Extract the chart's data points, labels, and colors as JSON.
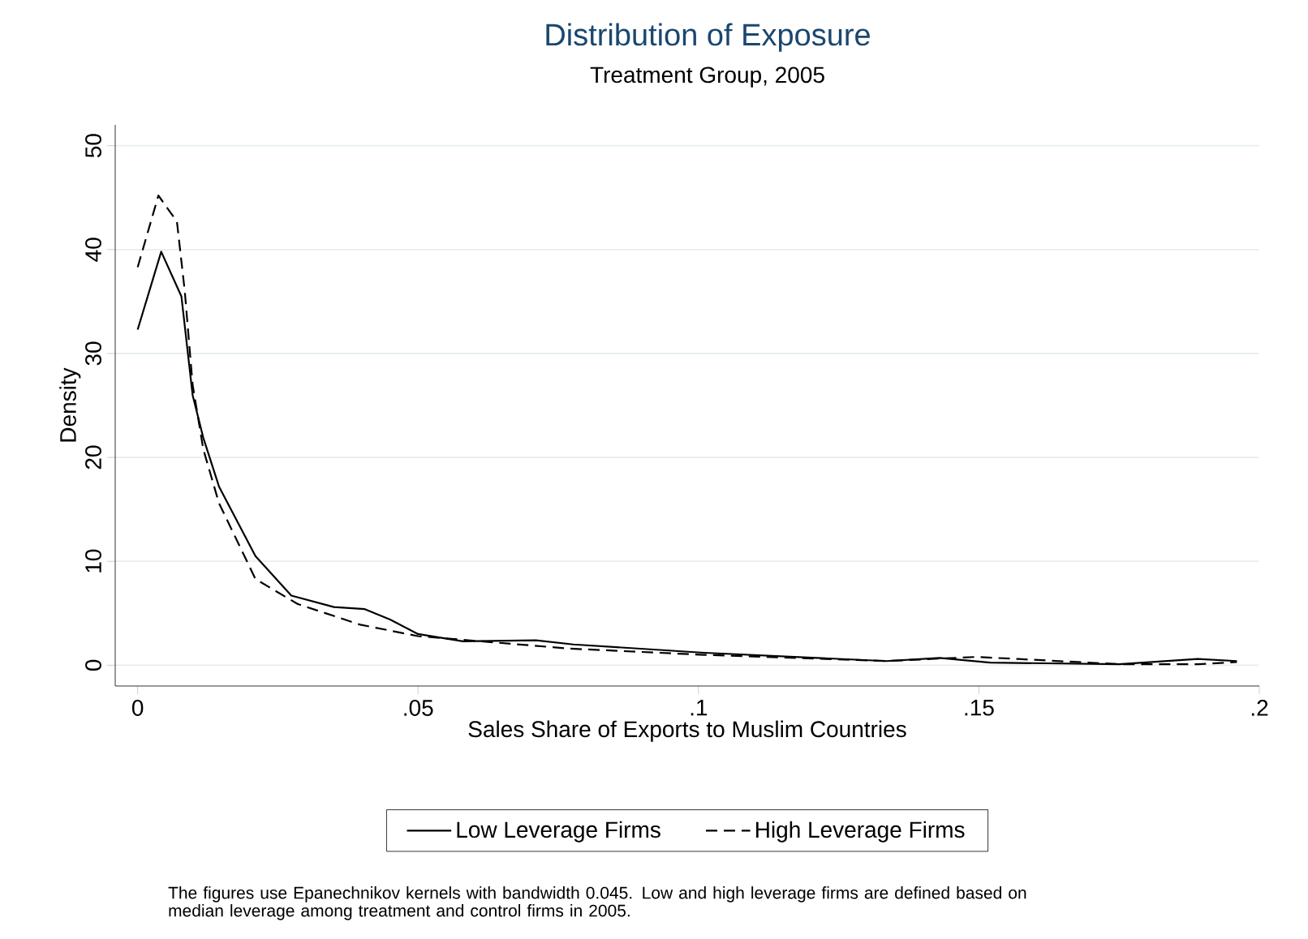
{
  "chart_data": {
    "type": "line",
    "title": "Distribution of Exposure",
    "subtitle": "Treatment Group, 2005",
    "xlabel": "Sales Share of Exports to Muslim Countries",
    "ylabel": "Density",
    "series": [
      {
        "name": "Low Leverage Firms",
        "color": "#000000",
        "line_style": "solid",
        "x": [
          0,
          0.0042,
          0.0078,
          0.0098,
          0.0117,
          0.0145,
          0.021,
          0.0274,
          0.035,
          0.0405,
          0.045,
          0.05,
          0.058,
          0.071,
          0.0777,
          0.101,
          0.1335,
          0.143,
          0.152,
          0.175,
          0.189,
          0.196
        ],
        "values": [
          32.3,
          39.8,
          35.5,
          26,
          21.9,
          17.2,
          10.5,
          6.7,
          5.6,
          5.4,
          4.4,
          3.0,
          2.3,
          2.4,
          2.0,
          1.2,
          0.4,
          0.7,
          0.25,
          0.1,
          0.6,
          0.4
        ]
      },
      {
        "name": "High Leverage Firms",
        "color": "#000000",
        "line_style": "dashed",
        "x": [
          0,
          0.0037,
          0.007,
          0.0084,
          0.0098,
          0.0117,
          0.0145,
          0.021,
          0.0285,
          0.0397,
          0.05,
          0.077,
          0.101,
          0.1335,
          0.1495,
          0.157,
          0.175,
          0.189,
          0.196
        ],
        "values": [
          38.3,
          45.2,
          42.7,
          36,
          27,
          20.8,
          15.6,
          8.3,
          5.9,
          3.9,
          2.8,
          1.6,
          1.0,
          0.4,
          0.8,
          0.6,
          0.1,
          0.1,
          0.3
        ]
      }
    ],
    "xlim": [
      -0.004,
      0.2
    ],
    "ylim": [
      -2,
      52
    ],
    "xticks": [
      {
        "value": 0,
        "label": "0"
      },
      {
        "value": 0.05,
        "label": ".05"
      },
      {
        "value": 0.1,
        "label": ".1"
      },
      {
        "value": 0.15,
        "label": ".15"
      },
      {
        "value": 0.2,
        "label": ".2"
      }
    ],
    "yticks": [
      0,
      10,
      20,
      30,
      40,
      50
    ],
    "grid": "y",
    "legend": "bottom",
    "annotations": [
      "The figures use Epanechnikov kernels with bandwidth 0.045. Low and high leverage firms are defined based on median leverage among treatment and control firms in 2005."
    ]
  }
}
